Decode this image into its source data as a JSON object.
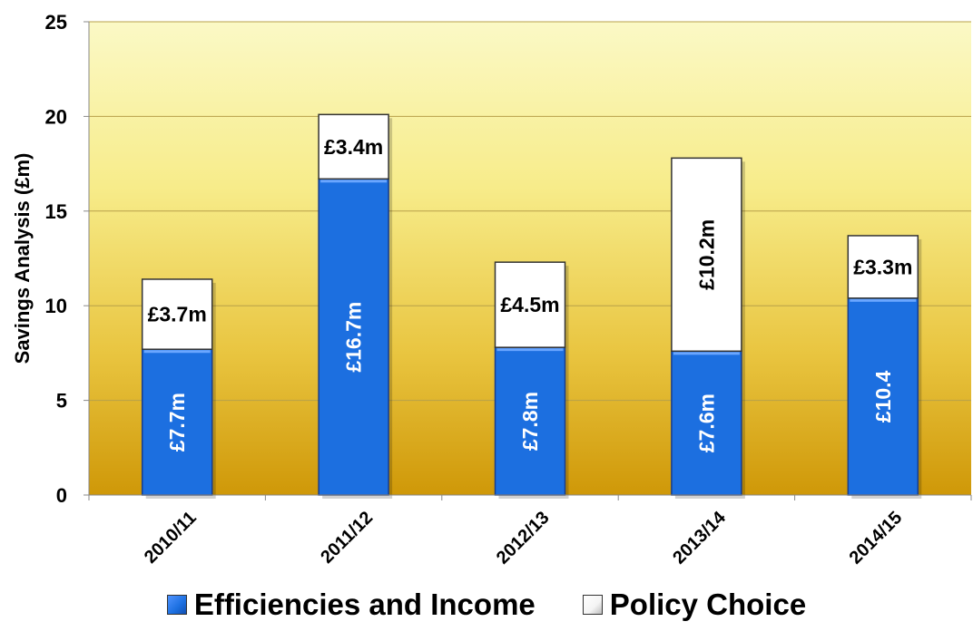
{
  "chart_data": {
    "type": "bar",
    "stacked": true,
    "title": "",
    "xlabel": "",
    "ylabel": "Savings Analysis (£m)",
    "ylim": [
      0,
      25
    ],
    "yticks": [
      "0",
      "5",
      "10",
      "15",
      "20",
      "25"
    ],
    "ytick_values": [
      0,
      5,
      10,
      15,
      20,
      25
    ],
    "categories": [
      "2010/11",
      "2011/12",
      "2012/13",
      "2013/14",
      "2014/15"
    ],
    "series": [
      {
        "name": "Efficiencies and Income",
        "color": "#1c6fe0",
        "values": [
          7.7,
          16.7,
          7.8,
          7.6,
          10.4
        ],
        "labels": [
          "£7.7m",
          "£16.7m",
          "£7.8m",
          "£7.6m",
          "£10.4"
        ]
      },
      {
        "name": "Policy Choice",
        "color": "#ffffff",
        "values": [
          3.7,
          3.4,
          4.5,
          10.2,
          3.3
        ],
        "labels": [
          "£3.7m",
          "£3.4m",
          "£4.5m",
          "£10.2m",
          "£3.3m"
        ]
      }
    ],
    "plot_background": "yellow-to-gold vertical gradient",
    "gridlines": true,
    "legend_position": "bottom"
  }
}
